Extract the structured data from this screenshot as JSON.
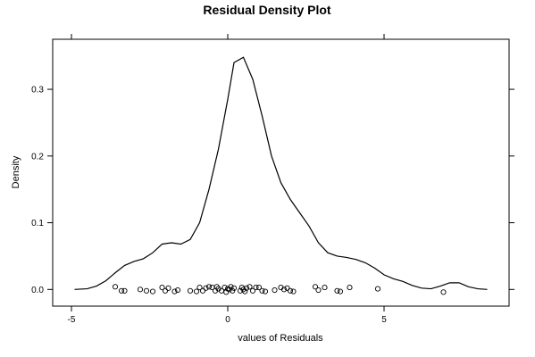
{
  "chart_data": {
    "type": "line",
    "title": "Residual Density Plot",
    "xlabel": "values of Residuals",
    "ylabel": "Density",
    "xlim": [
      -5.6,
      9.0
    ],
    "ylim": [
      -0.025,
      0.375
    ],
    "x_ticks": [
      -5,
      0,
      5
    ],
    "x_tick_labels": [
      "-5",
      "0",
      "5"
    ],
    "y_ticks": [
      0.0,
      0.1,
      0.2,
      0.3
    ],
    "y_tick_labels": [
      "0.0",
      "0.1",
      "0.2",
      "0.3"
    ],
    "grid": false,
    "series": [
      {
        "x": [
          -4.9,
          -4.5,
          -4.2,
          -3.9,
          -3.6,
          -3.3,
          -3.0,
          -2.7,
          -2.4,
          -2.1,
          -1.8,
          -1.5,
          -1.2,
          -0.9,
          -0.6,
          -0.3,
          0.0,
          0.2,
          0.5,
          0.8,
          1.1,
          1.4,
          1.7,
          2.0,
          2.3,
          2.6,
          2.9,
          3.2,
          3.5,
          3.8,
          4.1,
          4.4,
          4.7,
          5.0,
          5.3,
          5.6,
          5.9,
          6.2,
          6.5,
          6.8,
          7.1,
          7.4,
          7.7,
          8.0,
          8.3
        ],
        "values": [
          0.0,
          0.001,
          0.005,
          0.013,
          0.025,
          0.036,
          0.042,
          0.046,
          0.055,
          0.068,
          0.07,
          0.068,
          0.075,
          0.1,
          0.15,
          0.21,
          0.285,
          0.34,
          0.348,
          0.315,
          0.26,
          0.2,
          0.16,
          0.135,
          0.115,
          0.095,
          0.07,
          0.055,
          0.05,
          0.048,
          0.045,
          0.04,
          0.032,
          0.022,
          0.016,
          0.012,
          0.006,
          0.002,
          0.001,
          0.005,
          0.01,
          0.01,
          0.004,
          0.001,
          0.0
        ]
      }
    ],
    "rug": {
      "x": [
        -3.6,
        -3.4,
        -3.3,
        -2.8,
        -2.6,
        -2.4,
        -2.1,
        -2.0,
        -1.9,
        -1.7,
        -1.6,
        -1.2,
        -1.0,
        -0.9,
        -0.8,
        -0.7,
        -0.6,
        -0.5,
        -0.4,
        -0.35,
        -0.3,
        -0.2,
        -0.1,
        -0.05,
        0.0,
        0.05,
        0.1,
        0.15,
        0.2,
        0.4,
        0.45,
        0.5,
        0.55,
        0.6,
        0.7,
        0.8,
        0.9,
        1.0,
        1.1,
        1.2,
        1.5,
        1.7,
        1.8,
        1.9,
        2.0,
        2.1,
        2.8,
        2.9,
        3.1,
        3.5,
        3.6,
        3.9,
        4.8,
        6.9
      ],
      "y": [
        0.004,
        -0.002,
        -0.002,
        0.0,
        -0.002,
        -0.003,
        0.003,
        -0.002,
        0.002,
        -0.003,
        -0.001,
        -0.002,
        -0.003,
        0.003,
        -0.002,
        0.002,
        0.004,
        0.003,
        -0.002,
        0.004,
        0.001,
        -0.002,
        0.003,
        -0.004,
        0.001,
        0.0,
        0.004,
        -0.002,
        0.002,
        -0.002,
        0.003,
        0.0,
        -0.003,
        0.002,
        0.004,
        -0.002,
        0.003,
        0.003,
        -0.002,
        -0.003,
        -0.001,
        0.003,
        0.0,
        0.002,
        -0.002,
        -0.003,
        0.004,
        -0.001,
        0.003,
        -0.002,
        -0.003,
        0.003,
        0.001,
        -0.004
      ]
    }
  }
}
